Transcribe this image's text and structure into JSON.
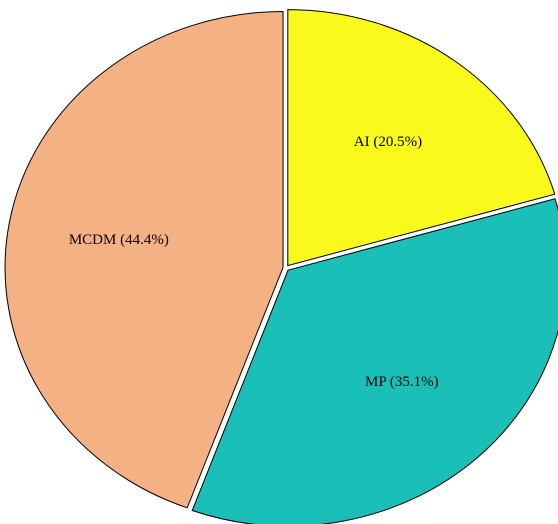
{
  "chart_data": {
    "type": "pie",
    "values": [
      20.5,
      35.1,
      44.4
    ],
    "value_labels": [
      "AI (20.5%)",
      "MP (35.1%)",
      "MCDM (44.4%)"
    ],
    "colors": [
      "#f9f91c",
      "#1abfb7",
      "#f4b183"
    ]
  }
}
